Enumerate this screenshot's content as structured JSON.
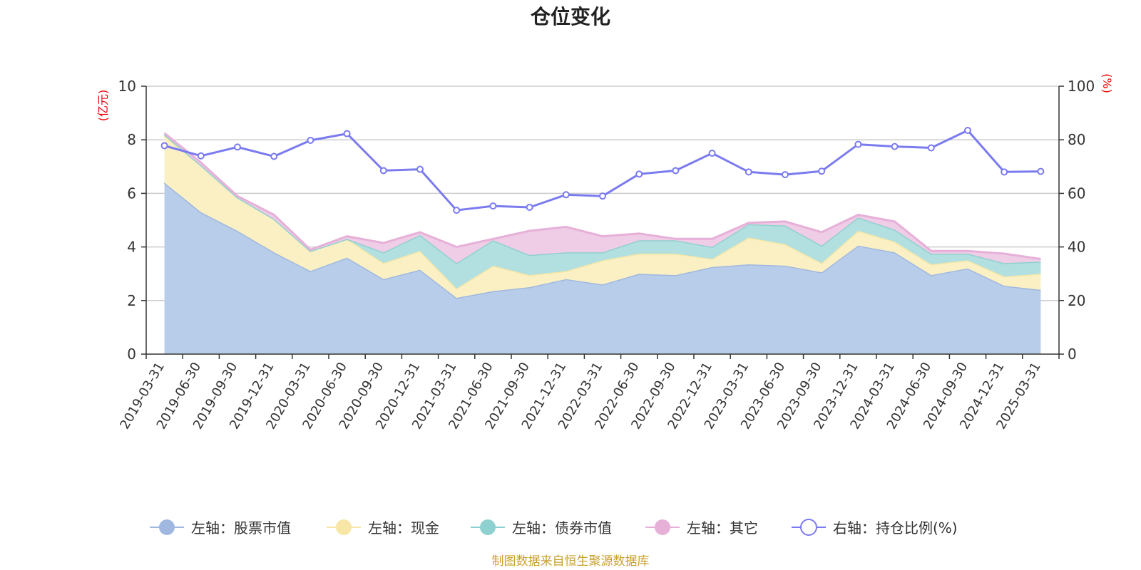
{
  "colors": {
    "stock": "#a0b8e0",
    "stock_fill": "#b8cdea",
    "cash": "#f7e6a6",
    "cash_fill": "#faf0c4",
    "bond": "#8fd0d0",
    "bond_fill": "#b2e0e0",
    "other": "#e6b0d8",
    "other_fill": "#efcde6",
    "ratio": "#7b7bf0",
    "axis_label": "#ee0000",
    "source": "#c9a02a",
    "grid": "#cccccc"
  },
  "chart_data": {
    "type": "area",
    "title": "仓位变化",
    "left_axis_unit": "(亿元)",
    "right_axis_unit": "(%)",
    "ylim_left": [
      0,
      10
    ],
    "ylim_right": [
      0,
      100
    ],
    "left_ticks": [
      "0",
      "2",
      "4",
      "6",
      "8",
      "10"
    ],
    "right_ticks": [
      "0",
      "20",
      "40",
      "60",
      "80",
      "100"
    ],
    "categories": [
      "2019-03-31",
      "2019-06-30",
      "2019-09-30",
      "2019-12-31",
      "2020-03-31",
      "2020-06-30",
      "2020-09-30",
      "2020-12-31",
      "2021-03-31",
      "2021-06-30",
      "2021-09-30",
      "2021-12-31",
      "2022-03-31",
      "2022-06-30",
      "2022-09-30",
      "2022-12-31",
      "2023-03-31",
      "2023-06-30",
      "2023-09-30",
      "2023-12-31",
      "2024-03-31",
      "2024-06-30",
      "2024-09-30",
      "2024-12-31",
      "2025-03-31"
    ],
    "series": [
      {
        "name": "左轴：股票市值",
        "axis": "left",
        "stack": true,
        "values": [
          6.4,
          5.3,
          4.6,
          3.8,
          3.1,
          3.6,
          2.8,
          3.15,
          2.1,
          2.35,
          2.5,
          2.8,
          2.6,
          3.0,
          2.95,
          3.25,
          3.35,
          3.3,
          3.05,
          4.05,
          3.8,
          2.95,
          3.2,
          2.55,
          2.4
        ]
      },
      {
        "name": "左轴：现金",
        "axis": "left",
        "stack": true,
        "values": [
          1.75,
          1.75,
          1.25,
          1.25,
          0.75,
          0.7,
          0.6,
          0.7,
          0.35,
          0.95,
          0.45,
          0.3,
          0.9,
          0.75,
          0.8,
          0.3,
          1.0,
          0.8,
          0.35,
          0.55,
          0.4,
          0.4,
          0.3,
          0.35,
          0.6
        ]
      },
      {
        "name": "左轴：债券市值",
        "axis": "left",
        "stack": true,
        "values": [
          0.05,
          0.0,
          0.0,
          0.0,
          0.0,
          0.0,
          0.4,
          0.6,
          0.95,
          0.95,
          0.75,
          0.7,
          0.3,
          0.5,
          0.5,
          0.45,
          0.5,
          0.7,
          0.65,
          0.5,
          0.45,
          0.4,
          0.25,
          0.5,
          0.45
        ]
      },
      {
        "name": "左轴：其它",
        "axis": "left",
        "stack": true,
        "values": [
          0.05,
          0.1,
          0.05,
          0.15,
          0.05,
          0.1,
          0.35,
          0.1,
          0.6,
          0.05,
          0.9,
          0.95,
          0.6,
          0.25,
          0.05,
          0.3,
          0.05,
          0.15,
          0.5,
          0.1,
          0.3,
          0.1,
          0.1,
          0.35,
          0.1
        ]
      },
      {
        "name": "右轴：持仓比例(%)",
        "axis": "right",
        "stack": false,
        "values": [
          77.8,
          74.0,
          77.3,
          73.8,
          79.8,
          82.3,
          68.5,
          69.0,
          53.7,
          55.3,
          54.8,
          59.5,
          59.0,
          67.2,
          68.5,
          75.0,
          68.0,
          67.0,
          68.3,
          78.3,
          77.5,
          77.0,
          83.5,
          68.0,
          68.2
        ]
      }
    ],
    "legend_position": "bottom-center",
    "grid": true
  },
  "source_note": "制图数据来自恒生聚源数据库"
}
